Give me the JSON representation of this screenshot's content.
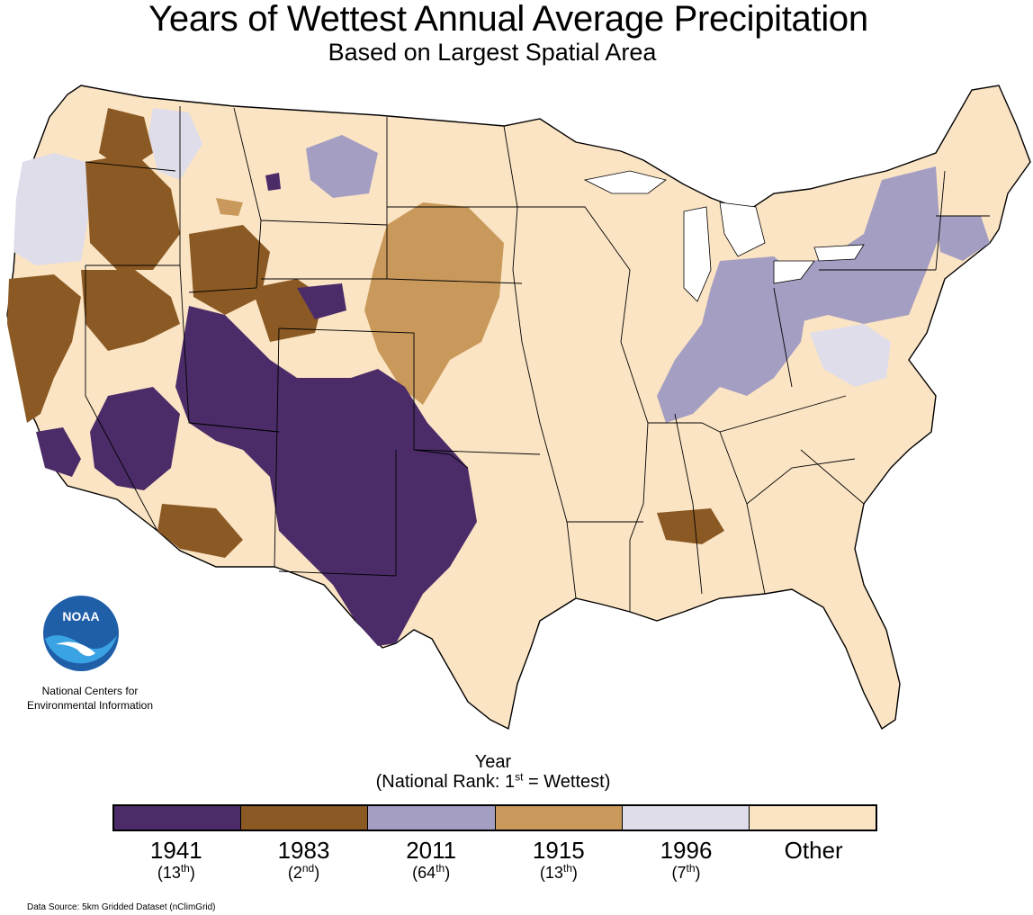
{
  "title": "Years of Wettest Annual Average Precipitation",
  "subtitle": "Based on Largest Spatial Area",
  "agency": "National Centers for Environmental Information",
  "logo_text": "NOAA",
  "legend": {
    "title_line1": "Year",
    "title_line2_pre": "(National Rank: 1",
    "title_line2_sup": "st",
    "title_line2_post": " = Wettest)",
    "items": [
      {
        "year": "1941",
        "rank_num": "13",
        "rank_sup": "th",
        "color": "#4b2c68"
      },
      {
        "year": "1983",
        "rank_num": "2",
        "rank_sup": "nd",
        "color": "#8b5a24"
      },
      {
        "year": "2011",
        "rank_num": "64",
        "rank_sup": "th",
        "color": "#a39ec2"
      },
      {
        "year": "1915",
        "rank_num": "13",
        "rank_sup": "th",
        "color": "#c9995b"
      },
      {
        "year": "1996",
        "rank_num": "7",
        "rank_sup": "th",
        "color": "#dfdde9"
      },
      {
        "year": "Other",
        "rank_num": "",
        "rank_sup": "",
        "color": "#fbe4c4"
      }
    ]
  },
  "source": "Data Source: 5km Gridded Dataset (nClimGrid)"
}
